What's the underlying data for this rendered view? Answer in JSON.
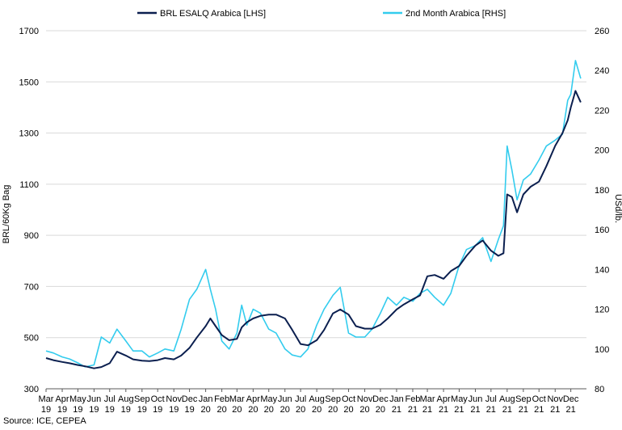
{
  "chart_data": {
    "type": "line",
    "title": "",
    "source": "Source: ICE, CEPEA",
    "y_left": {
      "label": "BRL/60Kg Bag",
      "range": [
        300,
        1700
      ],
      "ticks": [
        "300",
        "500",
        "700",
        "900",
        "1100",
        "1300",
        "1500",
        "1700"
      ]
    },
    "y_right": {
      "label": "USd/lb.",
      "range": [
        80,
        260
      ],
      "ticks": [
        "80",
        "100",
        "120",
        "140",
        "160",
        "180",
        "200",
        "220",
        "240",
        "260"
      ]
    },
    "x": {
      "range": [
        "2019-03-01",
        "2021-12-31"
      ],
      "ticks": [
        {
          "date": "2019-03-01",
          "m": "Mar",
          "y": "19"
        },
        {
          "date": "2019-04-01",
          "m": "Apr",
          "y": "19"
        },
        {
          "date": "2019-05-01",
          "m": "May",
          "y": "19"
        },
        {
          "date": "2019-06-01",
          "m": "Jun",
          "y": "19"
        },
        {
          "date": "2019-07-01",
          "m": "Jul",
          "y": "19"
        },
        {
          "date": "2019-08-01",
          "m": "Aug",
          "y": "19"
        },
        {
          "date": "2019-09-01",
          "m": "Sep",
          "y": "19"
        },
        {
          "date": "2019-10-01",
          "m": "Oct",
          "y": "19"
        },
        {
          "date": "2019-11-01",
          "m": "Nov",
          "y": "19"
        },
        {
          "date": "2019-12-01",
          "m": "Dec",
          "y": "19"
        },
        {
          "date": "2020-01-01",
          "m": "Jan",
          "y": "20"
        },
        {
          "date": "2020-02-01",
          "m": "Feb",
          "y": "20"
        },
        {
          "date": "2020-03-01",
          "m": "Mar",
          "y": "20"
        },
        {
          "date": "2020-04-01",
          "m": "Apr",
          "y": "20"
        },
        {
          "date": "2020-05-01",
          "m": "May",
          "y": "20"
        },
        {
          "date": "2020-06-01",
          "m": "Jun",
          "y": "20"
        },
        {
          "date": "2020-07-01",
          "m": "Jul",
          "y": "20"
        },
        {
          "date": "2020-08-01",
          "m": "Aug",
          "y": "20"
        },
        {
          "date": "2020-09-01",
          "m": "Sep",
          "y": "20"
        },
        {
          "date": "2020-10-01",
          "m": "Oct",
          "y": "20"
        },
        {
          "date": "2020-11-01",
          "m": "Nov",
          "y": "20"
        },
        {
          "date": "2020-12-01",
          "m": "Dec",
          "y": "20"
        },
        {
          "date": "2021-01-01",
          "m": "Jan",
          "y": "21"
        },
        {
          "date": "2021-02-01",
          "m": "Feb",
          "y": "21"
        },
        {
          "date": "2021-03-01",
          "m": "Mar",
          "y": "21"
        },
        {
          "date": "2021-04-01",
          "m": "Apr",
          "y": "21"
        },
        {
          "date": "2021-05-01",
          "m": "May",
          "y": "21"
        },
        {
          "date": "2021-06-01",
          "m": "Jun",
          "y": "21"
        },
        {
          "date": "2021-07-01",
          "m": "Jul",
          "y": "21"
        },
        {
          "date": "2021-08-01",
          "m": "Aug",
          "y": "21"
        },
        {
          "date": "2021-09-01",
          "m": "Sep",
          "y": "21"
        },
        {
          "date": "2021-10-01",
          "m": "Oct",
          "y": "21"
        },
        {
          "date": "2021-11-01",
          "m": "Nov",
          "y": "21"
        },
        {
          "date": "2021-12-01",
          "m": "Dec",
          "y": "21"
        }
      ]
    },
    "legend_position": "top",
    "grid": true,
    "series": [
      {
        "name": "BRL ESALQ Arabica [LHS]",
        "axis": "left",
        "color": "#0b1f4f",
        "points": [
          [
            "2019-03-01",
            420
          ],
          [
            "2019-03-15",
            412
          ],
          [
            "2019-04-01",
            405
          ],
          [
            "2019-04-15",
            400
          ],
          [
            "2019-05-01",
            393
          ],
          [
            "2019-05-15",
            388
          ],
          [
            "2019-06-01",
            380
          ],
          [
            "2019-06-15",
            385
          ],
          [
            "2019-07-01",
            400
          ],
          [
            "2019-07-15",
            445
          ],
          [
            "2019-08-01",
            430
          ],
          [
            "2019-08-15",
            415
          ],
          [
            "2019-09-01",
            410
          ],
          [
            "2019-09-15",
            408
          ],
          [
            "2019-10-01",
            412
          ],
          [
            "2019-10-15",
            420
          ],
          [
            "2019-11-01",
            415
          ],
          [
            "2019-11-15",
            430
          ],
          [
            "2019-12-01",
            460
          ],
          [
            "2019-12-15",
            500
          ],
          [
            "2020-01-01",
            545
          ],
          [
            "2020-01-10",
            575
          ],
          [
            "2020-01-20",
            545
          ],
          [
            "2020-02-01",
            510
          ],
          [
            "2020-02-15",
            490
          ],
          [
            "2020-03-01",
            495
          ],
          [
            "2020-03-10",
            540
          ],
          [
            "2020-03-20",
            560
          ],
          [
            "2020-04-01",
            575
          ],
          [
            "2020-04-15",
            585
          ],
          [
            "2020-05-01",
            590
          ],
          [
            "2020-05-15",
            590
          ],
          [
            "2020-06-01",
            575
          ],
          [
            "2020-06-15",
            530
          ],
          [
            "2020-07-01",
            475
          ],
          [
            "2020-07-15",
            470
          ],
          [
            "2020-08-01",
            490
          ],
          [
            "2020-08-15",
            530
          ],
          [
            "2020-09-01",
            595
          ],
          [
            "2020-09-15",
            610
          ],
          [
            "2020-10-01",
            590
          ],
          [
            "2020-10-15",
            545
          ],
          [
            "2020-11-01",
            535
          ],
          [
            "2020-11-15",
            535
          ],
          [
            "2020-12-01",
            550
          ],
          [
            "2020-12-15",
            575
          ],
          [
            "2021-01-01",
            610
          ],
          [
            "2021-01-15",
            630
          ],
          [
            "2021-02-01",
            650
          ],
          [
            "2021-02-15",
            665
          ],
          [
            "2021-03-01",
            740
          ],
          [
            "2021-03-15",
            745
          ],
          [
            "2021-04-01",
            730
          ],
          [
            "2021-04-15",
            760
          ],
          [
            "2021-05-01",
            780
          ],
          [
            "2021-05-15",
            820
          ],
          [
            "2021-06-01",
            860
          ],
          [
            "2021-06-15",
            880
          ],
          [
            "2021-07-01",
            840
          ],
          [
            "2021-07-15",
            820
          ],
          [
            "2021-07-25",
            830
          ],
          [
            "2021-08-01",
            1060
          ],
          [
            "2021-08-10",
            1050
          ],
          [
            "2021-08-20",
            990
          ],
          [
            "2021-09-01",
            1060
          ],
          [
            "2021-09-15",
            1090
          ],
          [
            "2021-10-01",
            1110
          ],
          [
            "2021-10-15",
            1170
          ],
          [
            "2021-11-01",
            1250
          ],
          [
            "2021-11-15",
            1300
          ],
          [
            "2021-11-25",
            1350
          ],
          [
            "2021-12-01",
            1400
          ],
          [
            "2021-12-10",
            1465
          ],
          [
            "2021-12-20",
            1420
          ]
        ]
      },
      {
        "name": "2nd Month Arabica [RHS]",
        "axis": "right",
        "color": "#33ccee",
        "points": [
          [
            "2019-03-01",
            99
          ],
          [
            "2019-03-15",
            98
          ],
          [
            "2019-04-01",
            96
          ],
          [
            "2019-04-15",
            95
          ],
          [
            "2019-05-01",
            93
          ],
          [
            "2019-05-15",
            91
          ],
          [
            "2019-06-01",
            92
          ],
          [
            "2019-06-15",
            106
          ],
          [
            "2019-07-01",
            103
          ],
          [
            "2019-07-15",
            110
          ],
          [
            "2019-08-01",
            104
          ],
          [
            "2019-08-15",
            99
          ],
          [
            "2019-09-01",
            99
          ],
          [
            "2019-09-15",
            96
          ],
          [
            "2019-10-01",
            98
          ],
          [
            "2019-10-15",
            100
          ],
          [
            "2019-11-01",
            99
          ],
          [
            "2019-11-15",
            110
          ],
          [
            "2019-12-01",
            125
          ],
          [
            "2019-12-15",
            130
          ],
          [
            "2020-01-01",
            140
          ],
          [
            "2020-01-10",
            130
          ],
          [
            "2020-01-20",
            120
          ],
          [
            "2020-02-01",
            104
          ],
          [
            "2020-02-15",
            100
          ],
          [
            "2020-03-01",
            108
          ],
          [
            "2020-03-10",
            122
          ],
          [
            "2020-03-20",
            112
          ],
          [
            "2020-04-01",
            120
          ],
          [
            "2020-04-15",
            118
          ],
          [
            "2020-05-01",
            110
          ],
          [
            "2020-05-15",
            108
          ],
          [
            "2020-06-01",
            100
          ],
          [
            "2020-06-15",
            97
          ],
          [
            "2020-07-01",
            96
          ],
          [
            "2020-07-15",
            100
          ],
          [
            "2020-08-01",
            112
          ],
          [
            "2020-08-15",
            120
          ],
          [
            "2020-09-01",
            127
          ],
          [
            "2020-09-15",
            131
          ],
          [
            "2020-10-01",
            108
          ],
          [
            "2020-10-15",
            106
          ],
          [
            "2020-11-01",
            106
          ],
          [
            "2020-11-15",
            110
          ],
          [
            "2020-12-01",
            118
          ],
          [
            "2020-12-15",
            126
          ],
          [
            "2021-01-01",
            122
          ],
          [
            "2021-01-15",
            126
          ],
          [
            "2021-02-01",
            124
          ],
          [
            "2021-02-15",
            128
          ],
          [
            "2021-03-01",
            130
          ],
          [
            "2021-03-15",
            126
          ],
          [
            "2021-04-01",
            122
          ],
          [
            "2021-04-15",
            128
          ],
          [
            "2021-05-01",
            142
          ],
          [
            "2021-05-15",
            150
          ],
          [
            "2021-06-01",
            152
          ],
          [
            "2021-06-15",
            156
          ],
          [
            "2021-07-01",
            144
          ],
          [
            "2021-07-15",
            155
          ],
          [
            "2021-07-25",
            162
          ],
          [
            "2021-08-01",
            202
          ],
          [
            "2021-08-10",
            190
          ],
          [
            "2021-08-20",
            175
          ],
          [
            "2021-09-01",
            185
          ],
          [
            "2021-09-15",
            188
          ],
          [
            "2021-10-01",
            195
          ],
          [
            "2021-10-15",
            202
          ],
          [
            "2021-11-01",
            205
          ],
          [
            "2021-11-15",
            208
          ],
          [
            "2021-11-25",
            225
          ],
          [
            "2021-12-01",
            228
          ],
          [
            "2021-12-10",
            245
          ],
          [
            "2021-12-20",
            236
          ]
        ]
      }
    ]
  }
}
